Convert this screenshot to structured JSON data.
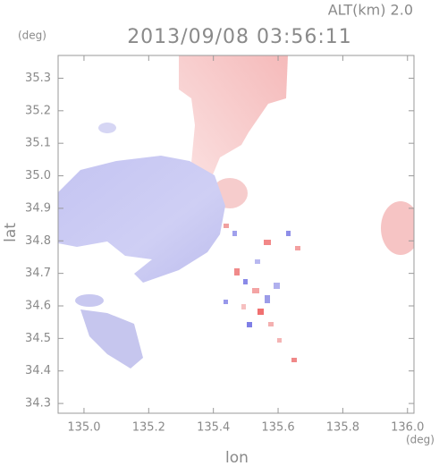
{
  "chart_data": {
    "type": "map",
    "annotation": "ALT(km) 2.0",
    "title": "2013/09/08 03:56:11",
    "xlabel": "lon",
    "ylabel": "lat",
    "xunit": "(deg)",
    "yunit": "(deg)",
    "xlim": [
      134.92,
      136.02
    ],
    "ylim": [
      34.27,
      35.37
    ],
    "xticks": [
      {
        "value": 135.0,
        "label": "135.0"
      },
      135.2,
      135.4,
      135.6,
      135.8,
      {
        "value": 136.0,
        "label": "136.0"
      }
    ],
    "yticks": [
      34.3,
      34.4,
      34.5,
      34.6,
      34.7,
      34.8,
      34.9,
      {
        "value": 35.0,
        "label": "35.0"
      },
      35.1,
      35.2,
      35.3
    ]
  }
}
